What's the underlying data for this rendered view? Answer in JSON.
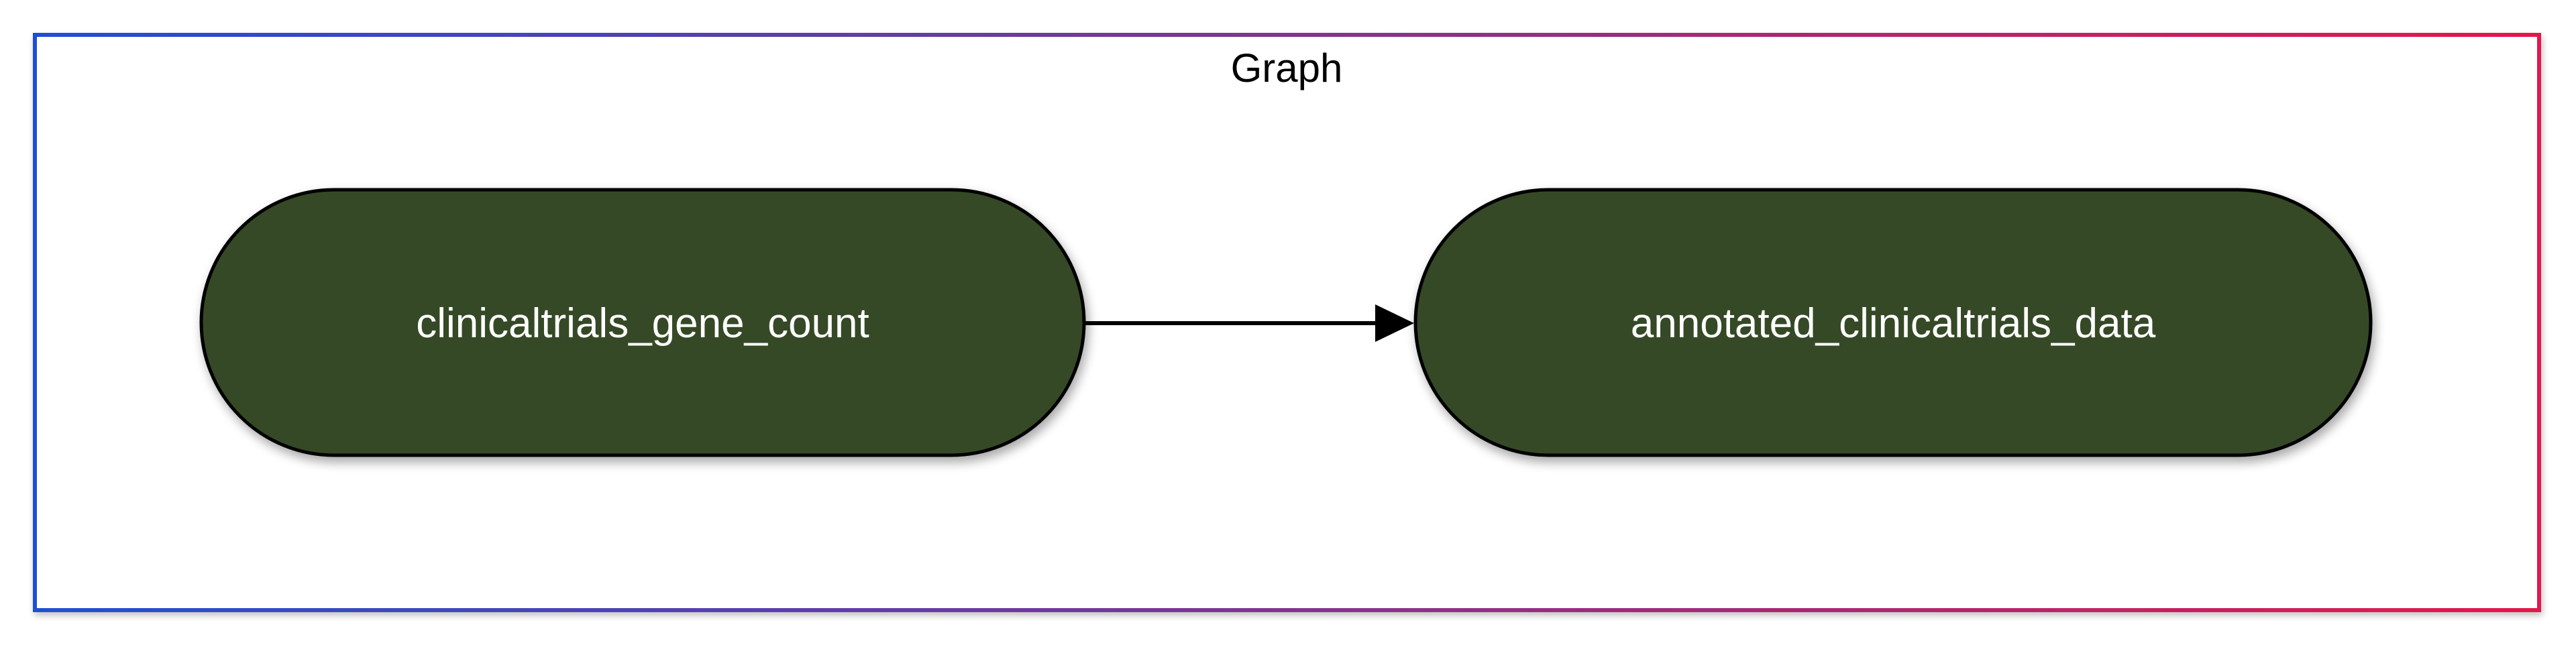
{
  "graph": {
    "title": "Graph",
    "border_gradient": [
      "#1f4fd6",
      "#e5174b"
    ],
    "nodes": [
      {
        "id": "clinicaltrials_gene_count",
        "label": "clinicaltrials_gene_count",
        "fill": "#364826",
        "stroke": "#000000",
        "text_color": "#ffffff"
      },
      {
        "id": "annotated_clinicaltrials_data",
        "label": "annotated_clinicaltrials_data",
        "fill": "#364826",
        "stroke": "#000000",
        "text_color": "#ffffff"
      }
    ],
    "edges": [
      {
        "from": "clinicaltrials_gene_count",
        "to": "annotated_clinicaltrials_data",
        "color": "#000000"
      }
    ]
  }
}
